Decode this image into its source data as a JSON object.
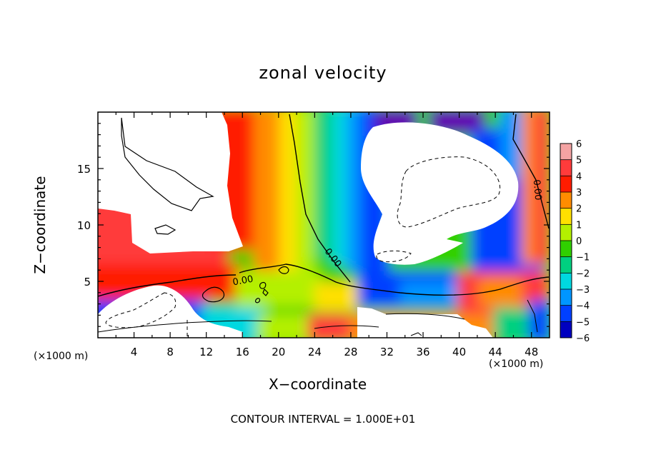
{
  "chart_data": {
    "type": "heatmap",
    "title": "zonal velocity",
    "xlabel": "X−coordinate",
    "ylabel": "Z−coordinate",
    "x_units_left": "(×1000 m)",
    "x_units_right": "(×1000 m)",
    "xlim": [
      0,
      50
    ],
    "ylim": [
      0,
      20
    ],
    "x_ticks": [
      4,
      8,
      12,
      16,
      20,
      24,
      28,
      32,
      36,
      40,
      44,
      48
    ],
    "x_tick_labels": [
      "4",
      "8",
      "12",
      "16",
      "20",
      "24",
      "28",
      "32",
      "36",
      "40",
      "44",
      "48"
    ],
    "y_ticks": [
      5,
      10,
      15
    ],
    "y_tick_labels": [
      "5",
      "10",
      "15"
    ],
    "colorbar": {
      "levels": [
        6,
        5,
        4,
        3,
        2,
        1,
        0,
        -1,
        -2,
        -3,
        -4,
        -5,
        -6
      ],
      "labels": [
        "6",
        "5",
        "4",
        "3",
        "2",
        "1",
        "0",
        "−1",
        "−2",
        "−3",
        "−4",
        "−5",
        "−6"
      ],
      "colors": [
        "#f4a3a3",
        "#ff3b3b",
        "#ff1c00",
        "#ff8c00",
        "#ffe000",
        "#b4f000",
        "#30d000",
        "#00d080",
        "#00d8e0",
        "#0096ff",
        "#0040ff",
        "#0000c0",
        "#6000b0"
      ]
    },
    "contour_labels": [
      "0.00",
      "0.00",
      "0.00"
    ],
    "footnote": "CONTOUR INTERVAL = 1.000E+01",
    "grid": false
  }
}
